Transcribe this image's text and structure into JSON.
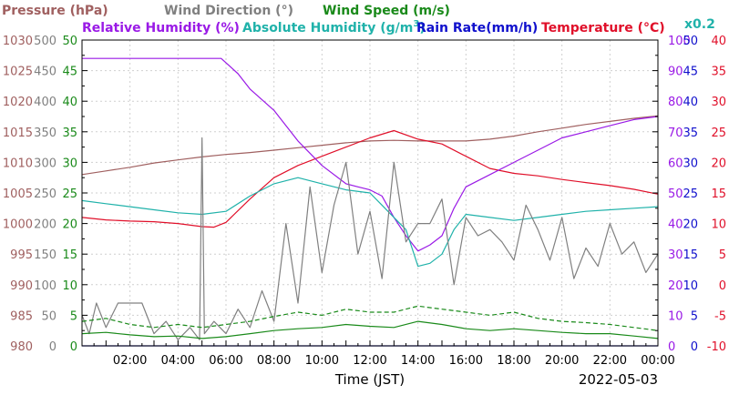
{
  "chart_data": {
    "type": "line",
    "date": "2022-05-03",
    "xlabel": "Time (JST)",
    "x_ticks": [
      "02:00",
      "04:00",
      "06:00",
      "08:00",
      "10:00",
      "12:00",
      "14:00",
      "16:00",
      "18:00",
      "20:00",
      "22:00",
      "00:00"
    ],
    "x_range_hours": [
      0,
      24
    ],
    "grid": true,
    "legend": [
      {
        "id": "pressure",
        "text": "Pressure (hPa)",
        "color": "#a06060"
      },
      {
        "id": "winddir",
        "text": "Wind Direction (°)",
        "color": "#808080"
      },
      {
        "id": "windspeed",
        "text": "Wind Speed (m/s)",
        "color": "#1a8a1a"
      },
      {
        "id": "rh",
        "text": "Relative Humidity (%)",
        "color": "#9a1ae6"
      },
      {
        "id": "ah_a",
        "text": "Absolute Humidity (g/m",
        "color": "#20b2aa"
      },
      {
        "id": "ah_sup",
        "text": "3",
        "color": "#20b2aa"
      },
      {
        "id": "ah_b",
        "text": ")",
        "color": "#20b2aa"
      },
      {
        "id": "rain",
        "text": "Rain Rate(mm/h)",
        "color": "#1010cc"
      },
      {
        "id": "temp",
        "text": "Temperature (°C)",
        "color": "#e0102a"
      },
      {
        "id": "scale",
        "text": "x0.2",
        "color": "#20b2aa"
      }
    ],
    "axes": {
      "pressure": {
        "ticks": [
          "1030",
          "1025",
          "1020",
          "1015",
          "1010",
          "1005",
          "1000",
          "995",
          "990",
          "985",
          "980"
        ],
        "range": [
          980,
          1030
        ],
        "color": "#a06060"
      },
      "winddir": {
        "ticks": [
          "500",
          "450",
          "400",
          "350",
          "300",
          "250",
          "200",
          "150",
          "100",
          "50",
          "0"
        ],
        "range": [
          0,
          500
        ],
        "color": "#808080"
      },
      "windspeed": {
        "ticks": [
          "50",
          "45",
          "40",
          "35",
          "30",
          "25",
          "20",
          "15",
          "10",
          "5",
          "0"
        ],
        "range": [
          0,
          50
        ],
        "color": "#1a8a1a"
      },
      "rh": {
        "ticks": [
          "100",
          "90",
          "80",
          "70",
          "60",
          "50",
          "40",
          "30",
          "20",
          "10",
          "0"
        ],
        "range": [
          0,
          100
        ],
        "color": "#9a1ae6"
      },
      "rain": {
        "ticks": [
          "50",
          "45",
          "40",
          "35",
          "30",
          "25",
          "20",
          "15",
          "10",
          "5",
          "0"
        ],
        "range": [
          0,
          50
        ],
        "color": "#1010cc"
      },
      "temp": {
        "ticks": [
          "40",
          "35",
          "30",
          "25",
          "20",
          "15",
          "10",
          "5",
          "0",
          "-5",
          "-10"
        ],
        "range": [
          -10,
          40
        ],
        "color": "#e0102a"
      }
    },
    "series": [
      {
        "name": "Pressure (hPa)",
        "axis": "pressure",
        "color": "#a06060",
        "x": [
          0,
          1,
          2,
          3,
          4,
          5,
          6,
          7,
          8,
          9,
          10,
          11,
          12,
          13,
          14,
          15,
          16,
          17,
          18,
          19,
          20,
          21,
          22,
          23,
          24
        ],
        "y": [
          1008.0,
          1008.6,
          1009.2,
          1009.9,
          1010.4,
          1010.9,
          1011.3,
          1011.6,
          1012.0,
          1012.4,
          1012.8,
          1013.2,
          1013.5,
          1013.6,
          1013.5,
          1013.5,
          1013.5,
          1013.8,
          1014.3,
          1015.0,
          1015.6,
          1016.2,
          1016.7,
          1017.2,
          1017.6
        ]
      },
      {
        "name": "Temperature (°C)",
        "axis": "temp",
        "color": "#e0102a",
        "x": [
          0,
          1,
          2,
          3,
          4,
          5,
          5.5,
          6,
          7,
          8,
          9,
          10,
          11,
          12,
          13,
          14,
          15,
          16,
          17,
          18,
          19,
          20,
          21,
          22,
          23,
          24
        ],
        "y": [
          11.0,
          10.6,
          10.4,
          10.3,
          10.0,
          9.5,
          9.4,
          10.2,
          14.0,
          17.5,
          19.5,
          21.0,
          22.5,
          24.0,
          25.2,
          23.8,
          23.0,
          21.0,
          19.0,
          18.2,
          17.8,
          17.2,
          16.7,
          16.2,
          15.6,
          14.8
        ]
      },
      {
        "name": "Relative Humidity (%)",
        "axis": "rh",
        "color": "#9a1ae6",
        "x": [
          0,
          1,
          2,
          3,
          4,
          5,
          5.8,
          6.5,
          7,
          8,
          9,
          10,
          11,
          11.5,
          12,
          12.5,
          13,
          13.5,
          14,
          14.5,
          15,
          15.5,
          16,
          17,
          18,
          19,
          20,
          21,
          22,
          23,
          24
        ],
        "y": [
          94,
          94,
          94,
          94,
          94,
          94,
          94,
          89,
          84,
          77,
          67,
          59,
          53,
          52,
          51,
          49,
          42,
          36,
          31,
          33,
          36,
          45,
          52,
          56,
          60,
          64,
          68,
          70,
          72,
          74,
          75
        ]
      },
      {
        "name": "Absolute Humidity (g/m3) x0.2",
        "axis": "rh",
        "color": "#20b2aa",
        "x": [
          0,
          1,
          2,
          3,
          4,
          5,
          6,
          7,
          8,
          9,
          10,
          11,
          12,
          12.5,
          13,
          13.5,
          14,
          14.5,
          15,
          15.5,
          16,
          17,
          18,
          19,
          20,
          21,
          22,
          23,
          24
        ],
        "y": [
          47.5,
          46.5,
          45.5,
          44.5,
          43.5,
          43,
          44,
          49,
          53,
          55,
          53,
          51,
          50,
          46,
          42,
          38,
          26,
          27,
          30,
          38,
          43,
          42,
          41,
          42,
          43,
          44,
          44.5,
          45,
          45.5
        ]
      },
      {
        "name": "Wind Direction (°)",
        "axis": "winddir",
        "color": "#808080",
        "x": [
          0,
          0.3,
          0.6,
          1,
          1.5,
          2,
          2.5,
          3,
          3.5,
          4,
          4.5,
          4.9,
          5.0,
          5.1,
          5.5,
          6,
          6.5,
          7,
          7.5,
          8,
          8.5,
          9,
          9.5,
          10,
          10.5,
          11,
          11.5,
          12,
          12.5,
          13,
          13.5,
          14,
          14.5,
          15,
          15.5,
          16,
          16.5,
          17,
          17.5,
          18,
          18.5,
          19,
          19.5,
          20,
          20.5,
          21,
          21.5,
          22,
          22.5,
          23,
          23.5,
          24
        ],
        "y": [
          50,
          20,
          70,
          30,
          70,
          70,
          70,
          20,
          40,
          10,
          30,
          10,
          340,
          20,
          40,
          20,
          60,
          30,
          90,
          40,
          200,
          70,
          260,
          120,
          230,
          300,
          150,
          220,
          110,
          300,
          170,
          200,
          200,
          240,
          100,
          210,
          180,
          190,
          170,
          140,
          230,
          190,
          140,
          210,
          110,
          160,
          130,
          200,
          150,
          170,
          120,
          150
        ]
      },
      {
        "name": "Wind Speed (m/s)",
        "axis": "windspeed",
        "color": "#1a8a1a",
        "x": [
          0,
          1,
          2,
          3,
          4,
          5,
          6,
          7,
          8,
          9,
          10,
          11,
          12,
          13,
          14,
          15,
          16,
          17,
          18,
          19,
          20,
          21,
          22,
          23,
          24
        ],
        "y": [
          2.0,
          2.2,
          1.8,
          1.5,
          1.6,
          1.2,
          1.5,
          2.0,
          2.5,
          2.8,
          3.0,
          3.5,
          3.2,
          3.0,
          4.0,
          3.5,
          2.8,
          2.5,
          2.8,
          2.5,
          2.2,
          2.0,
          2.0,
          1.6,
          1.2
        ]
      },
      {
        "name": "Wind Speed gust",
        "axis": "windspeed",
        "color": "#1a8a1a",
        "dashed": true,
        "x": [
          0,
          1,
          2,
          3,
          4,
          5,
          6,
          7,
          8,
          9,
          10,
          11,
          12,
          13,
          14,
          15,
          16,
          17,
          18,
          19,
          20,
          21,
          22,
          23,
          24
        ],
        "y": [
          4.0,
          4.5,
          3.5,
          3.0,
          3.5,
          3.0,
          3.5,
          4.0,
          4.8,
          5.5,
          5.0,
          6.0,
          5.5,
          5.5,
          6.5,
          6.0,
          5.5,
          5.0,
          5.5,
          4.5,
          4.0,
          3.8,
          3.5,
          3.0,
          2.5
        ]
      },
      {
        "name": "Rain Rate(mm/h)",
        "axis": "rain",
        "color": "#1010cc",
        "x": [
          0,
          24
        ],
        "y": [
          0,
          0
        ]
      }
    ]
  }
}
